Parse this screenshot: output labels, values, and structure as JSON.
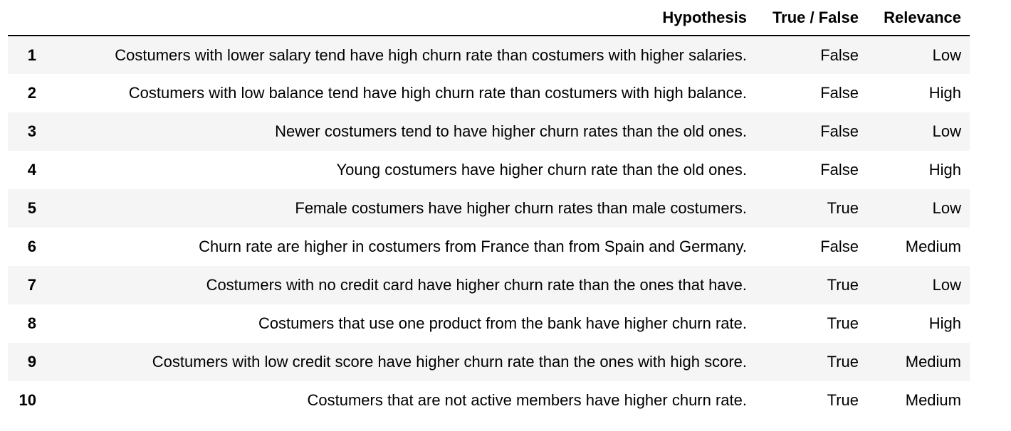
{
  "table": {
    "columns": [
      "",
      "Hypothesis",
      "True / False",
      "Relevance"
    ],
    "rows": [
      {
        "index": "1",
        "hypothesis": "Costumers with lower salary tend have high churn rate than costumers with higher salaries.",
        "true_false": "False",
        "relevance": "Low"
      },
      {
        "index": "2",
        "hypothesis": "Costumers with low balance tend have high churn rate than costumers with high balance.",
        "true_false": "False",
        "relevance": "High"
      },
      {
        "index": "3",
        "hypothesis": "Newer costumers tend to have higher churn rates than the old ones.",
        "true_false": "False",
        "relevance": "Low"
      },
      {
        "index": "4",
        "hypothesis": "Young costumers have higher churn rate than the old ones.",
        "true_false": "False",
        "relevance": "High"
      },
      {
        "index": "5",
        "hypothesis": "Female costumers have higher churn rates than male costumers.",
        "true_false": "True",
        "relevance": "Low"
      },
      {
        "index": "6",
        "hypothesis": "Churn rate are higher in costumers from France than from Spain and Germany.",
        "true_false": "False",
        "relevance": "Medium"
      },
      {
        "index": "7",
        "hypothesis": "Costumers with no credit card have higher churn rate than the ones that have.",
        "true_false": "True",
        "relevance": "Low"
      },
      {
        "index": "8",
        "hypothesis": "Costumers that use one product from the bank have higher churn rate.",
        "true_false": "True",
        "relevance": "High"
      },
      {
        "index": "9",
        "hypothesis": "Costumers with low credit score have higher churn rate than the ones with high score.",
        "true_false": "True",
        "relevance": "Medium"
      },
      {
        "index": "10",
        "hypothesis": "Costumers that are not active members have higher churn rate.",
        "true_false": "True",
        "relevance": "Medium"
      }
    ]
  },
  "colors": {
    "striped_row": "#f5f5f5",
    "header_rule": "#000000"
  }
}
